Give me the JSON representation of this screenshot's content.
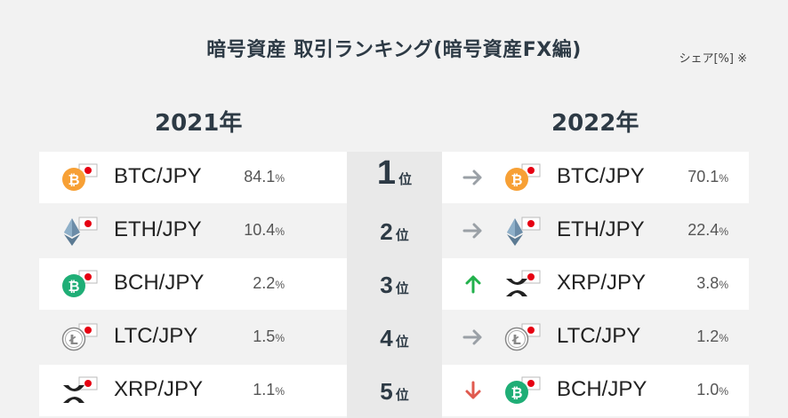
{
  "title": "暗号資産 取引ランキング(暗号資産FX編)",
  "unit": "シェア[%] ※",
  "years": {
    "left": "2021年",
    "right": "2022年"
  },
  "rank_suffix": "位",
  "ranks": [
    "1",
    "2",
    "3",
    "4",
    "5"
  ],
  "left": [
    {
      "pair": "BTC/JPY",
      "share": "84.1",
      "pct": "%",
      "coin": "bitcoin-icon"
    },
    {
      "pair": "ETH/JPY",
      "share": "10.4",
      "pct": "%",
      "coin": "ethereum-icon"
    },
    {
      "pair": "BCH/JPY",
      "share": "2.2",
      "pct": "%",
      "coin": "bitcoin-cash-icon"
    },
    {
      "pair": "LTC/JPY",
      "share": "1.5",
      "pct": "%",
      "coin": "litecoin-icon"
    },
    {
      "pair": "XRP/JPY",
      "share": "1.1",
      "pct": "%",
      "coin": "xrp-icon"
    }
  ],
  "right": [
    {
      "pair": "BTC/JPY",
      "share": "70.1",
      "pct": "%",
      "coin": "bitcoin-icon",
      "trend": "same"
    },
    {
      "pair": "ETH/JPY",
      "share": "22.4",
      "pct": "%",
      "coin": "ethereum-icon",
      "trend": "same"
    },
    {
      "pair": "XRP/JPY",
      "share": "3.8",
      "pct": "%",
      "coin": "xrp-icon",
      "trend": "up"
    },
    {
      "pair": "LTC/JPY",
      "share": "1.2",
      "pct": "%",
      "coin": "litecoin-icon",
      "trend": "same"
    },
    {
      "pair": "BCH/JPY",
      "share": "1.0",
      "pct": "%",
      "coin": "bitcoin-cash-icon",
      "trend": "down"
    }
  ],
  "colors": {
    "bitcoin": "#f7a035",
    "bitcoin_cash": "#1fae76",
    "ethereum": "#6b8ca8",
    "up": "#22b14c",
    "down": "#e05a4f",
    "same": "#9aa0a6",
    "heading": "#2d3a45"
  }
}
